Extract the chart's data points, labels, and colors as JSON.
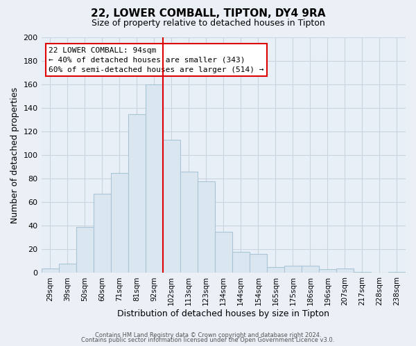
{
  "title": "22, LOWER COMBALL, TIPTON, DY4 9RA",
  "subtitle": "Size of property relative to detached houses in Tipton",
  "xlabel": "Distribution of detached houses by size in Tipton",
  "ylabel": "Number of detached properties",
  "bin_labels": [
    "29sqm",
    "39sqm",
    "50sqm",
    "60sqm",
    "71sqm",
    "81sqm",
    "92sqm",
    "102sqm",
    "113sqm",
    "123sqm",
    "134sqm",
    "144sqm",
    "154sqm",
    "165sqm",
    "175sqm",
    "186sqm",
    "196sqm",
    "207sqm",
    "217sqm",
    "228sqm",
    "238sqm"
  ],
  "bar_heights": [
    4,
    8,
    39,
    67,
    85,
    135,
    160,
    113,
    86,
    78,
    35,
    18,
    16,
    5,
    6,
    6,
    3,
    4,
    1,
    0,
    1
  ],
  "bar_color": "#dae6f0",
  "bar_edgecolor": "#aac4d8",
  "marker_line_x_label": "92sqm",
  "marker_line_color": "#dd0000",
  "annotation_title": "22 LOWER COMBALL: 94sqm",
  "annotation_line1": "← 40% of detached houses are smaller (343)",
  "annotation_line2": "60% of semi-detached houses are larger (514) →",
  "ylim": [
    0,
    200
  ],
  "yticks": [
    0,
    20,
    40,
    60,
    80,
    100,
    120,
    140,
    160,
    180,
    200
  ],
  "footer1": "Contains HM Land Registry data © Crown copyright and database right 2024.",
  "footer2": "Contains public sector information licensed under the Open Government Licence v3.0.",
  "bg_color": "#eaf0f6",
  "plot_bg_color": "#e8eff6",
  "grid_color": "#c8d4e0"
}
